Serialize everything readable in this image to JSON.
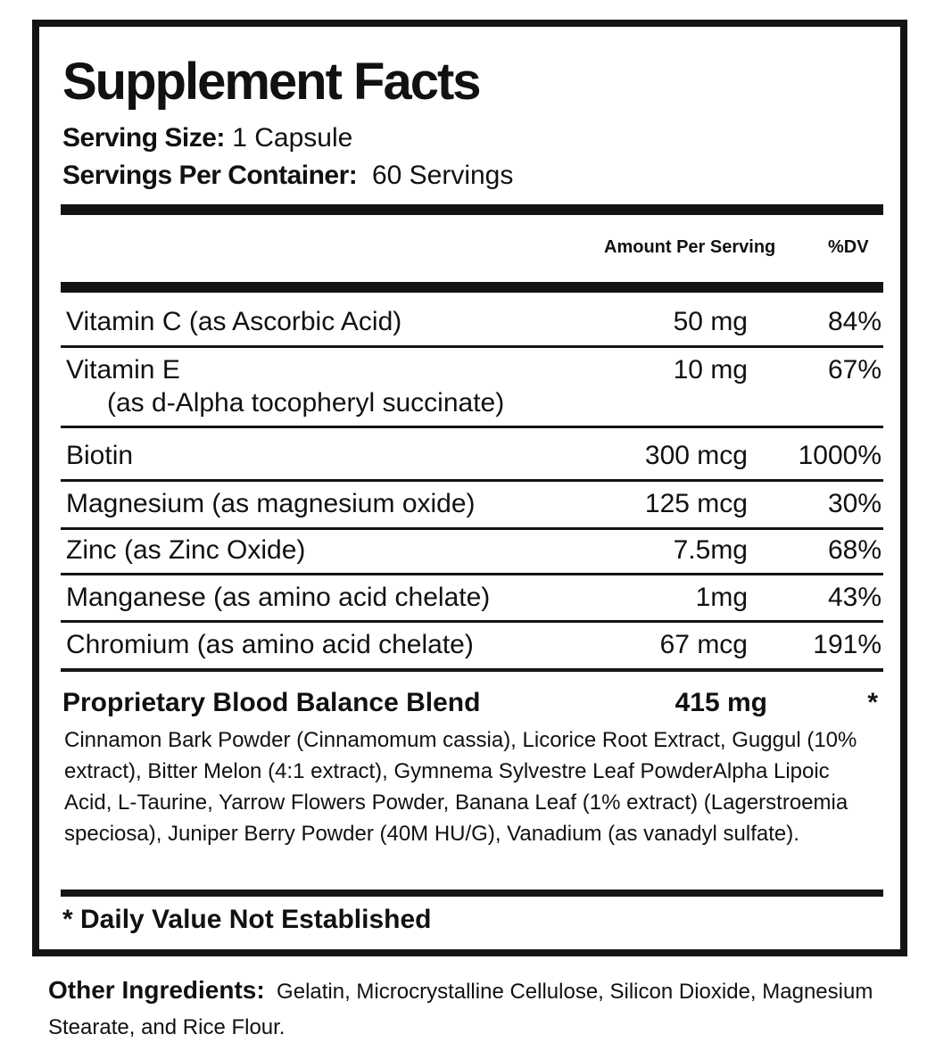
{
  "title": "Supplement Facts",
  "serving_size": {
    "label": "Serving Size:",
    "value": "1 Capsule"
  },
  "servings_per_container": {
    "label": "Servings Per Container:",
    "value": "60 Servings"
  },
  "columns": {
    "amount": "Amount Per Serving",
    "dv": "%DV"
  },
  "rows": [
    {
      "name": "Vitamin C (as Ascorbic Acid)",
      "amount": "50 mg",
      "dv": "84%"
    },
    {
      "name": "Vitamin E",
      "sub": "(as d-Alpha tocopheryl succinate)",
      "amount": "10 mg",
      "dv": "67%"
    },
    {
      "name": "Biotin",
      "amount": "300 mcg",
      "dv": "1000%"
    },
    {
      "name": "Magnesium (as magnesium oxide)",
      "amount": "125 mcg",
      "dv": "30%"
    },
    {
      "name": "Zinc (as Zinc Oxide)",
      "amount": "7.5mg",
      "dv": "68%"
    },
    {
      "name": "Manganese (as amino acid chelate)",
      "amount": "1mg",
      "dv": "43%"
    },
    {
      "name": "Chromium (as amino acid chelate)",
      "amount": "67 mcg",
      "dv": "191%"
    }
  ],
  "blend": {
    "name": "Proprietary Blood Balance Blend",
    "amount": "415 mg",
    "dv": "*",
    "ingredients": "Cinnamon Bark Powder (Cinnamomum cassia), Licorice Root Extract, Guggul (10% extract), Bitter Melon (4:1 extract), Gymnema Sylvestre Leaf PowderAlpha Lipoic Acid, L-Taurine, Yarrow Flowers Powder, Banana Leaf (1% extract) (Lagerstroemia speciosa), Juniper Berry Powder (40M HU/G), Vanadium (as vanadyl sulfate)."
  },
  "footnote": "* Daily Value Not Established",
  "other_ingredients": {
    "label": "Other Ingredients:",
    "value": "Gelatin, Microcrystalline Cellulose, Silicon Dioxide, Magnesium Stearate, and Rice Flour."
  }
}
